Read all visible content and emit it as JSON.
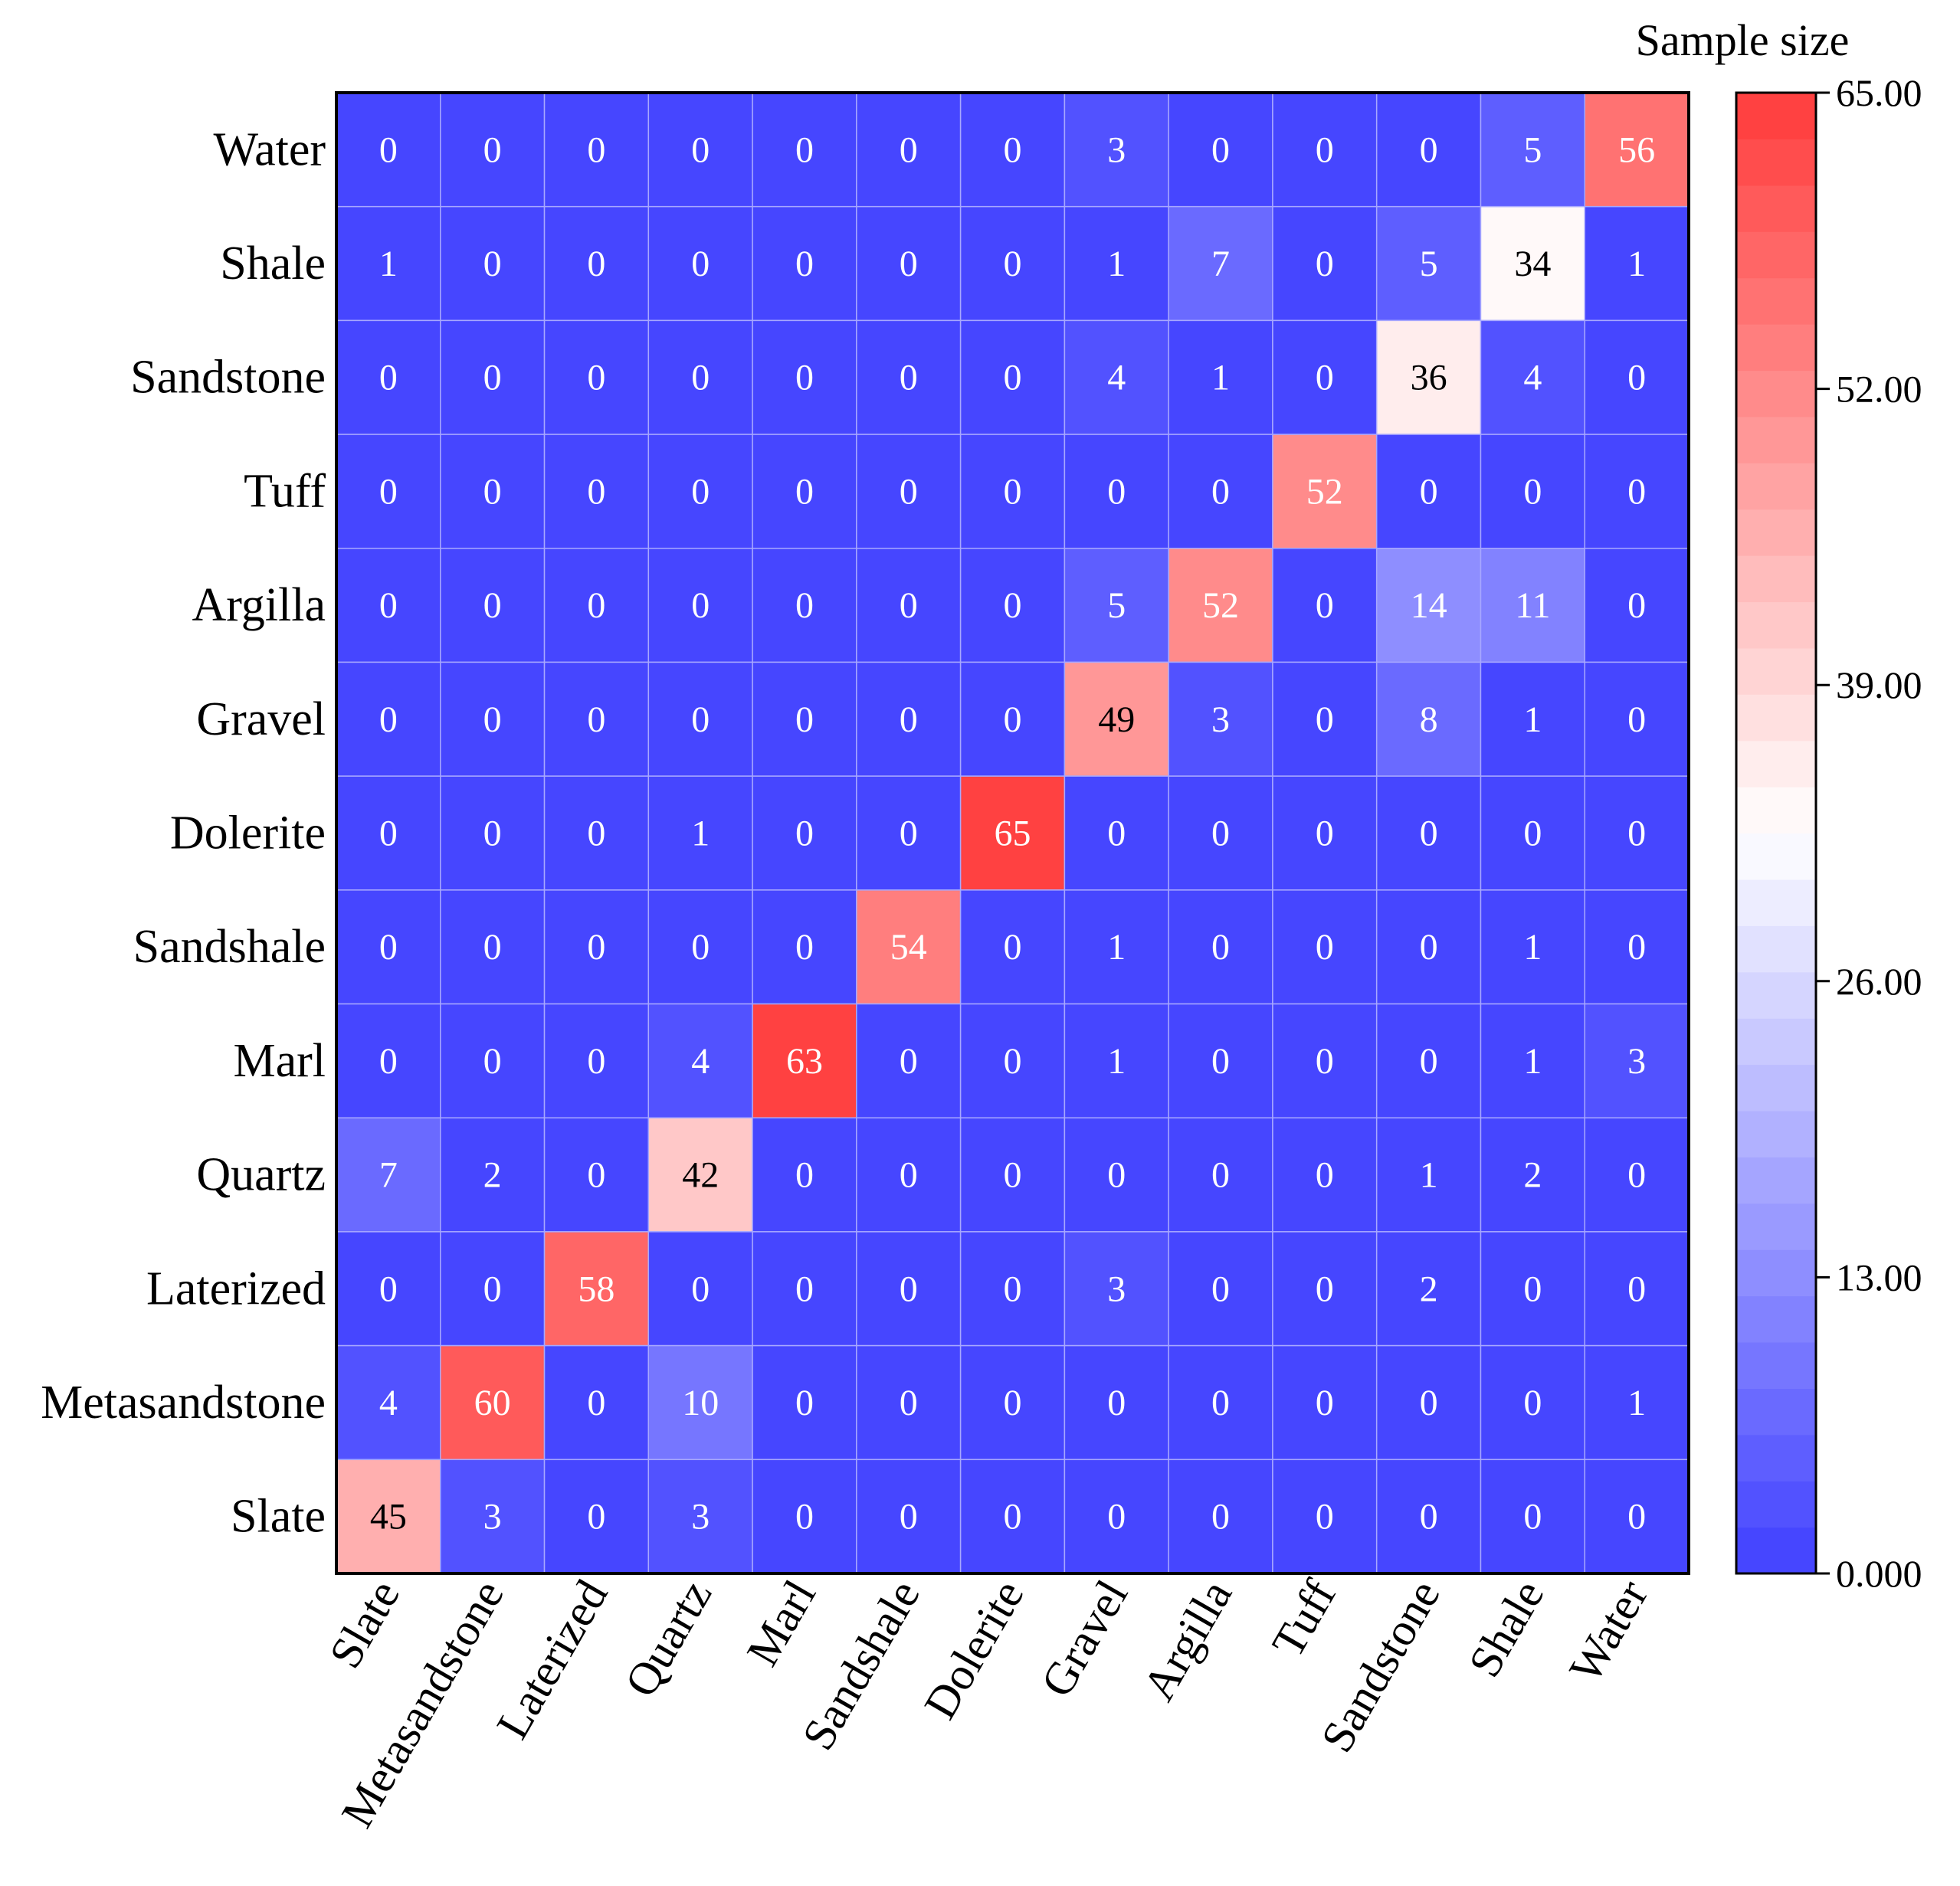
{
  "chart_data": {
    "type": "heatmap",
    "rows": [
      "Water",
      "Shale",
      "Sandstone",
      "Tuff",
      "Argilla",
      "Gravel",
      "Dolerite",
      "Sandshale",
      "Marl",
      "Quartz",
      "Laterized",
      "Metasandstone",
      "Slate"
    ],
    "columns": [
      "Slate",
      "Metasandstone",
      "Laterized",
      "Quartz",
      "Marl",
      "Sandshale",
      "Dolerite",
      "Gravel",
      "Argilla",
      "Tuff",
      "Sandstone",
      "Shale",
      "Water"
    ],
    "values": [
      [
        0,
        0,
        0,
        0,
        0,
        0,
        0,
        3,
        0,
        0,
        0,
        5,
        56
      ],
      [
        1,
        0,
        0,
        0,
        0,
        0,
        0,
        1,
        7,
        0,
        5,
        34,
        1
      ],
      [
        0,
        0,
        0,
        0,
        0,
        0,
        0,
        4,
        1,
        0,
        36,
        4,
        0
      ],
      [
        0,
        0,
        0,
        0,
        0,
        0,
        0,
        0,
        0,
        52,
        0,
        0,
        0
      ],
      [
        0,
        0,
        0,
        0,
        0,
        0,
        0,
        5,
        52,
        0,
        14,
        11,
        0
      ],
      [
        0,
        0,
        0,
        0,
        0,
        0,
        0,
        49,
        3,
        0,
        8,
        1,
        0
      ],
      [
        0,
        0,
        0,
        1,
        0,
        0,
        65,
        0,
        0,
        0,
        0,
        0,
        0
      ],
      [
        0,
        0,
        0,
        0,
        0,
        54,
        0,
        1,
        0,
        0,
        0,
        1,
        0
      ],
      [
        0,
        0,
        0,
        4,
        63,
        0,
        0,
        1,
        0,
        0,
        0,
        1,
        3
      ],
      [
        7,
        2,
        0,
        42,
        0,
        0,
        0,
        0,
        0,
        0,
        1,
        2,
        0
      ],
      [
        0,
        0,
        58,
        0,
        0,
        0,
        0,
        3,
        0,
        0,
        2,
        0,
        0
      ],
      [
        4,
        60,
        0,
        10,
        0,
        0,
        0,
        0,
        0,
        0,
        0,
        0,
        1
      ],
      [
        45,
        3,
        0,
        3,
        0,
        0,
        0,
        0,
        0,
        0,
        0,
        0,
        0
      ]
    ],
    "colorbar": {
      "title": "Sample size",
      "range": [
        0,
        65
      ],
      "ticks": [
        "0.000",
        "13.00",
        "26.00",
        "39.00",
        "52.00",
        "65.00"
      ],
      "levels": 32,
      "colors": {
        "low": "#4040ff",
        "mid": "#ffffff",
        "high": "#ff3b3b"
      }
    },
    "grid": true,
    "cell_border_color": "#a8a8ff"
  }
}
